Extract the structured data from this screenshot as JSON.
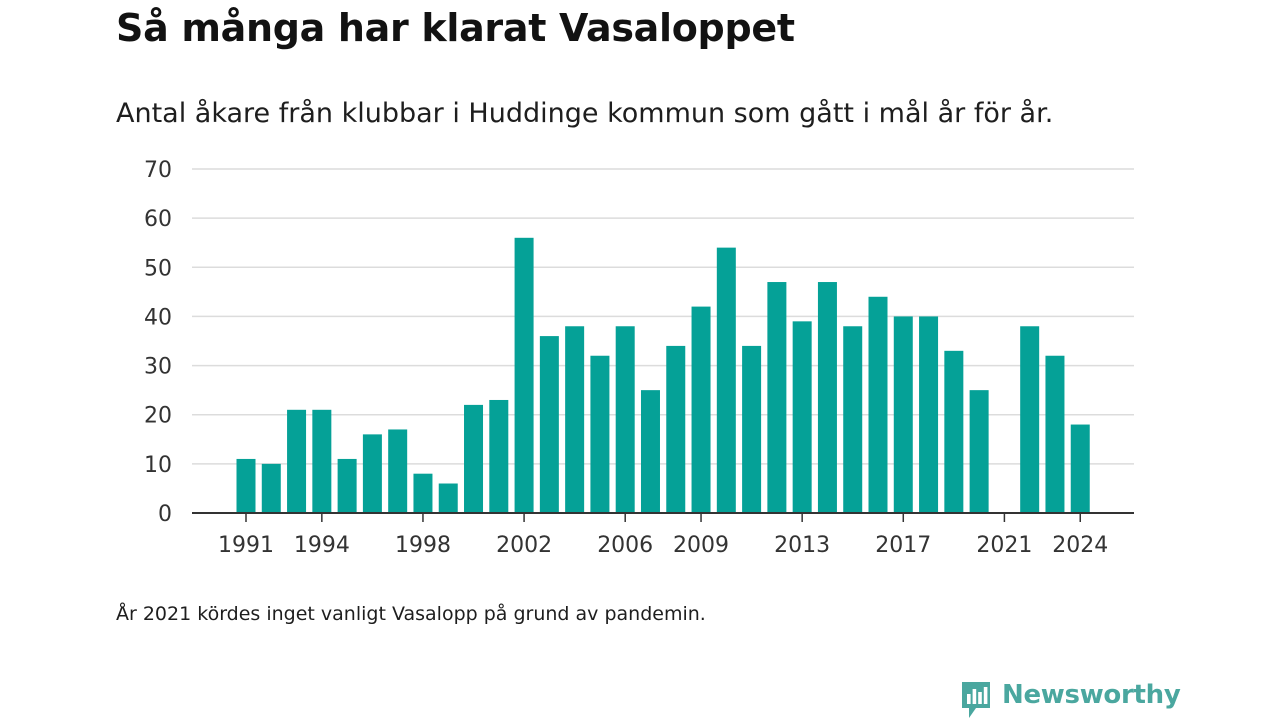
{
  "title": "Så många har klarat Vasaloppet",
  "subtitle": "Antal åkare från klubbar i Huddinge kommun som gått i mål år för år.",
  "footnote": "År 2021 kördes inget vanligt Vasalopp på grund av pandemin.",
  "brand": {
    "name": "Newsworthy",
    "icon": "newsworthy-logo-icon",
    "color": "#4aa79f"
  },
  "chart_data": {
    "type": "bar",
    "color": "#05a197",
    "x": [
      1991,
      1992,
      1993,
      1994,
      1995,
      1996,
      1997,
      1998,
      1999,
      2000,
      2001,
      2002,
      2003,
      2004,
      2005,
      2006,
      2007,
      2008,
      2009,
      2010,
      2011,
      2012,
      2013,
      2014,
      2015,
      2016,
      2017,
      2018,
      2019,
      2020,
      2021,
      2022,
      2023,
      2024
    ],
    "values": [
      11,
      10,
      21,
      21,
      11,
      16,
      17,
      8,
      6,
      22,
      23,
      56,
      36,
      38,
      32,
      38,
      25,
      34,
      42,
      54,
      34,
      47,
      39,
      47,
      38,
      44,
      40,
      40,
      33,
      25,
      0,
      38,
      32,
      18
    ],
    "x_tick_labels": [
      "1991",
      "1994",
      "1998",
      "2002",
      "2006",
      "2009",
      "2013",
      "2017",
      "2021",
      "2024"
    ],
    "y_ticks": [
      0,
      10,
      20,
      30,
      40,
      50,
      60,
      70
    ],
    "ylim": [
      0,
      70
    ],
    "grid": true,
    "legend": "none"
  }
}
